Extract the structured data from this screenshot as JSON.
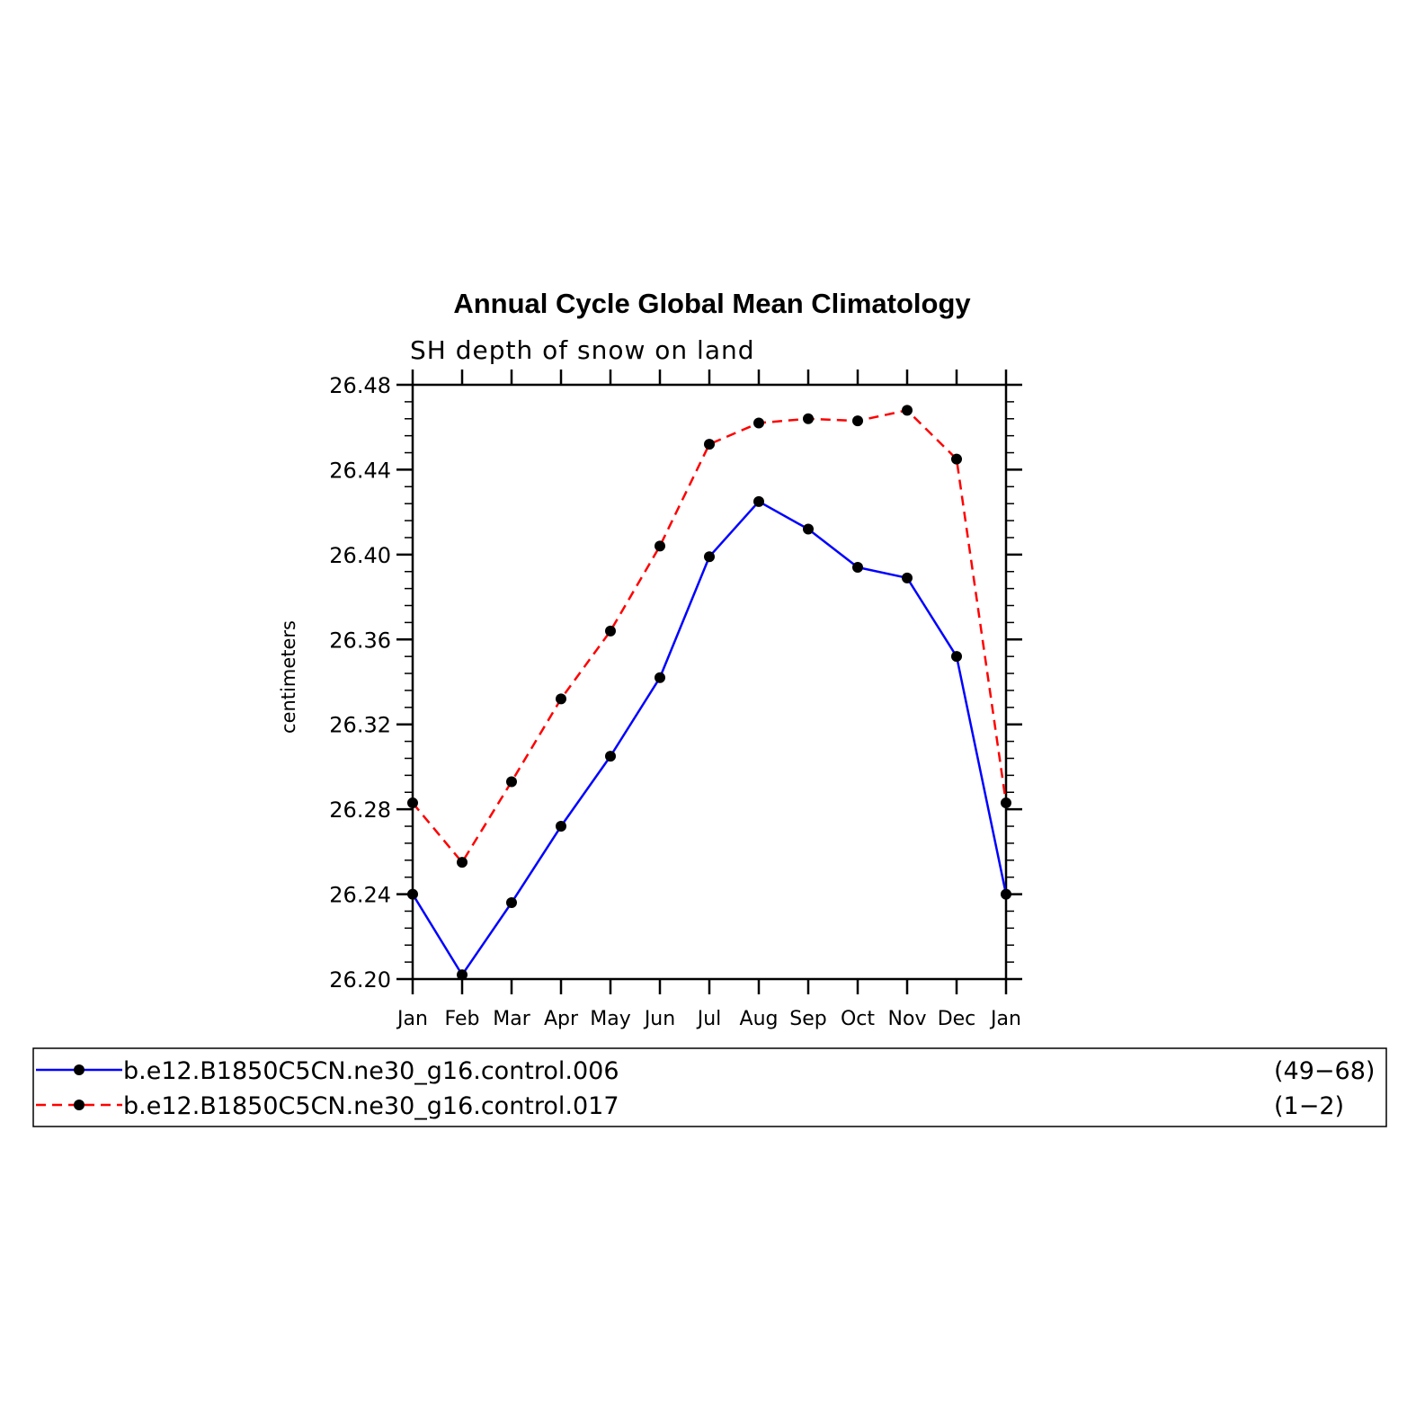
{
  "chart_data": {
    "type": "line",
    "title": "Annual Cycle Global Mean Climatology",
    "subtitle": "SH depth of snow on land",
    "ylabel": "centimeters",
    "xlabel": "",
    "categories": [
      "Jan",
      "Feb",
      "Mar",
      "Apr",
      "May",
      "Jun",
      "Jul",
      "Aug",
      "Sep",
      "Oct",
      "Nov",
      "Dec",
      "Jan"
    ],
    "ylim": [
      26.2,
      26.48
    ],
    "yticks": [
      "26.20",
      "26.24",
      "26.28",
      "26.32",
      "26.36",
      "26.40",
      "26.44",
      "26.48"
    ],
    "grid": false,
    "legend_position": "bottom",
    "series": [
      {
        "name": "b.e12.B1850C5CN.ne30_g16.control.006",
        "years": "(49−68)",
        "color": "#0000ff",
        "dash": "solid",
        "values": [
          26.24,
          26.202,
          26.236,
          26.272,
          26.305,
          26.342,
          26.399,
          26.425,
          26.412,
          26.394,
          26.389,
          26.352,
          26.24
        ]
      },
      {
        "name": "b.e12.B1850C5CN.ne30_g16.control.017",
        "years": "(1−2)",
        "color": "#ff0000",
        "dash": "dashed",
        "values": [
          26.283,
          26.255,
          26.293,
          26.332,
          26.364,
          26.404,
          26.452,
          26.462,
          26.464,
          26.463,
          26.468,
          26.445,
          26.283
        ]
      }
    ]
  }
}
